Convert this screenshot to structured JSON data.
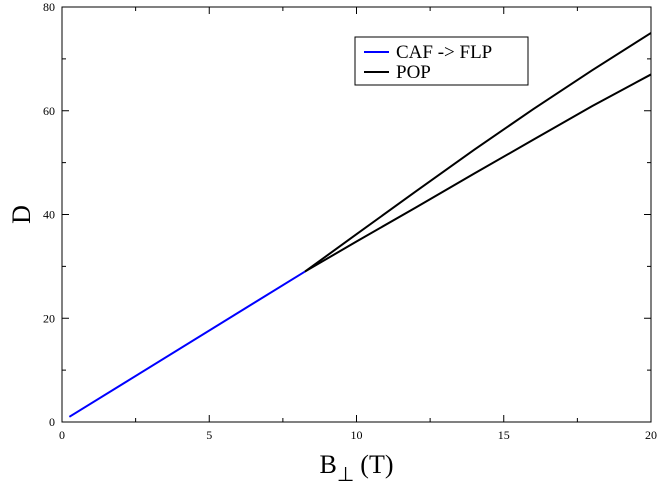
{
  "chart_data": {
    "type": "line",
    "xlabel": "B",
    "xlabel_subscript": "⊥",
    "xlabel_unit": "(T)",
    "ylabel": "D",
    "xlim": [
      0,
      20
    ],
    "ylim": [
      0,
      80
    ],
    "xticks": [
      0,
      5,
      10,
      15,
      20
    ],
    "yticks": [
      0,
      20,
      40,
      60,
      80
    ],
    "grid": false,
    "legend_position": "top-right",
    "series": [
      {
        "name": "CAF -> FLP",
        "color": "#0000ff",
        "x": [
          0.25,
          8.25
        ],
        "y": [
          1.0,
          29.0
        ]
      },
      {
        "name": "POP",
        "color": "#000000",
        "x": [
          8.25,
          10,
          12,
          14,
          16,
          18,
          20
        ],
        "y": [
          29.0,
          36.2,
          44.4,
          52.5,
          60.3,
          67.8,
          75.0
        ]
      },
      {
        "name": "",
        "color": "#000000",
        "x": [
          8.25,
          10,
          12,
          14,
          16,
          18,
          20
        ],
        "y": [
          29.0,
          34.8,
          41.3,
          47.9,
          54.4,
          60.9,
          67.0
        ]
      }
    ]
  }
}
